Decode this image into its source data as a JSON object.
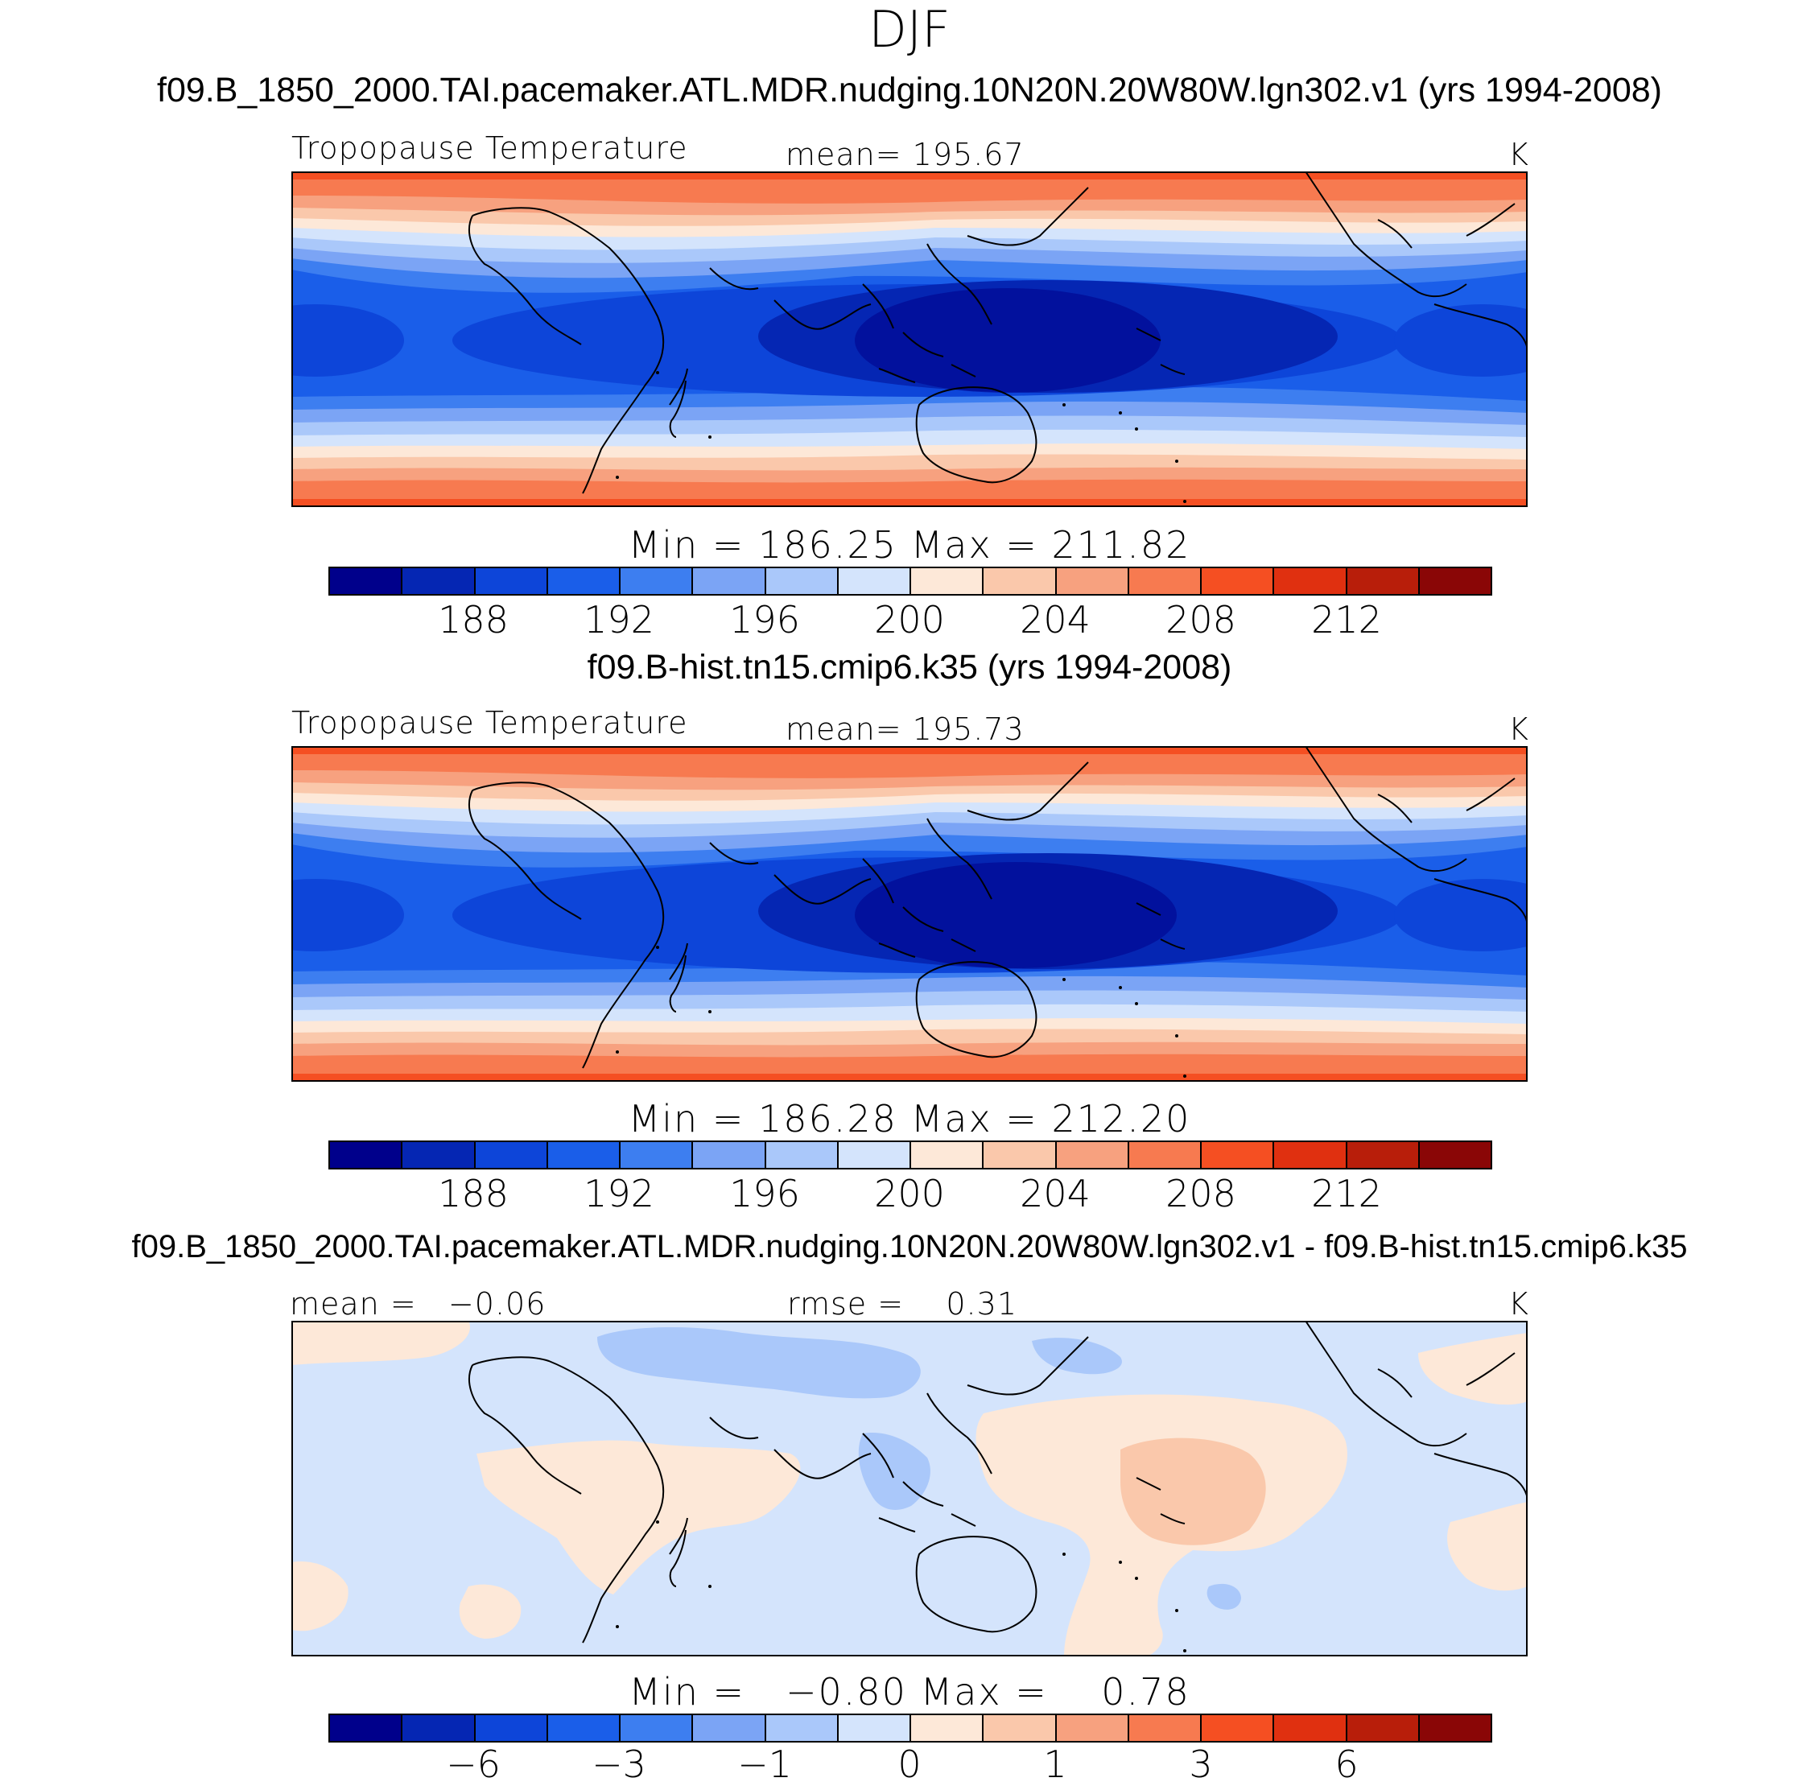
{
  "figure": {
    "season": "DJF",
    "colors": [
      "#00008b",
      "#0526b3",
      "#0d45d9",
      "#1a5ee9",
      "#3d7ef0",
      "#7ba4f5",
      "#aac8fa",
      "#d4e4fc",
      "#fde8d8",
      "#fac8ab",
      "#f7a17f",
      "#f77a50",
      "#f54f22",
      "#e03010",
      "#b81e0a",
      "#8a0606"
    ]
  },
  "panels": [
    {
      "case_title": "f09.B_1850_2000.TAI.pacemaker.ATL.MDR.nudging.10N20N.20W80W.lgn302.v1 (yrs 1994-2008)",
      "left_label": "Tropopause Temperature",
      "center_label": "mean= 195.67",
      "units": "K",
      "min_max": "Min = 186.25 Max = 211.82",
      "ticks": [
        "188",
        "192",
        "196",
        "200",
        "204",
        "208",
        "212"
      ]
    },
    {
      "case_title": "f09.B-hist.tn15.cmip6.k35 (yrs 1994-2008)",
      "left_label": "Tropopause Temperature",
      "center_label": "mean= 195.73",
      "units": "K",
      "min_max": "Min = 186.28 Max = 212.20",
      "ticks": [
        "188",
        "192",
        "196",
        "200",
        "204",
        "208",
        "212"
      ]
    },
    {
      "case_title": "f09.B_1850_2000.TAI.pacemaker.ATL.MDR.nudging.10N20N.20W80W.lgn302.v1 - f09.B-hist.tn15.cmip6.k35",
      "left_label": "mean =   −0.06",
      "center_label": "rmse =    0.31",
      "units": "K",
      "min_max": "Min =   −0.80 Max =    0.78",
      "ticks": [
        "−6",
        "−3",
        "−1",
        "0",
        "1",
        "3",
        "6"
      ]
    }
  ]
}
